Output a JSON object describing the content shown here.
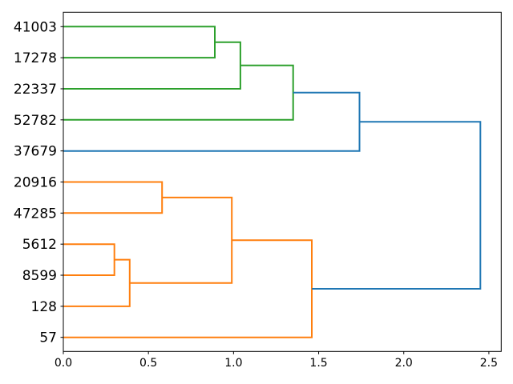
{
  "figure": {
    "background": "#ffffff",
    "border_color": "#000000"
  },
  "chart_data": {
    "type": "dendrogram",
    "orientation": "right",
    "title": "",
    "xlabel": "",
    "ylabel": "",
    "grid": false,
    "legend": null,
    "xlim": [
      0,
      2.5725
    ],
    "x_ticks": [
      {
        "value": 0.0,
        "label": "0.0"
      },
      {
        "value": 0.5,
        "label": "0.5"
      },
      {
        "value": 1.0,
        "label": "1.0"
      },
      {
        "value": 1.5,
        "label": "1.5"
      },
      {
        "value": 2.0,
        "label": "2.0"
      },
      {
        "value": 2.5,
        "label": "2.5"
      }
    ],
    "leaves": [
      "41003",
      "17278",
      "22337",
      "52782",
      "37679",
      "20916",
      "47285",
      "5612",
      "8599",
      "128",
      "57"
    ],
    "colors": {
      "blue": "#1f77b4",
      "orange": "#ff7f0e",
      "green": "#2ca02c"
    },
    "merges": [
      {
        "id": "M0",
        "children": [
          "L0",
          "L1"
        ],
        "distance": 0.89,
        "color": "green"
      },
      {
        "id": "M1",
        "children": [
          "M0",
          "L2"
        ],
        "distance": 1.04,
        "color": "green"
      },
      {
        "id": "M2",
        "children": [
          "M1",
          "L3"
        ],
        "distance": 1.35,
        "color": "green"
      },
      {
        "id": "M3",
        "children": [
          "M2",
          "L4"
        ],
        "distance": 1.74,
        "color": "blue"
      },
      {
        "id": "M4",
        "children": [
          "L7",
          "L8"
        ],
        "distance": 0.3,
        "color": "orange"
      },
      {
        "id": "M5",
        "children": [
          "M4",
          "L9"
        ],
        "distance": 0.39,
        "color": "orange"
      },
      {
        "id": "M6",
        "children": [
          "L5",
          "L6"
        ],
        "distance": 0.58,
        "color": "orange"
      },
      {
        "id": "M7",
        "children": [
          "M6",
          "M5"
        ],
        "distance": 0.99,
        "color": "orange"
      },
      {
        "id": "M8",
        "children": [
          "M7",
          "L10"
        ],
        "distance": 1.46,
        "color": "orange"
      },
      {
        "id": "M9",
        "children": [
          "M3",
          "M8"
        ],
        "distance": 2.45,
        "color": "blue"
      }
    ]
  }
}
